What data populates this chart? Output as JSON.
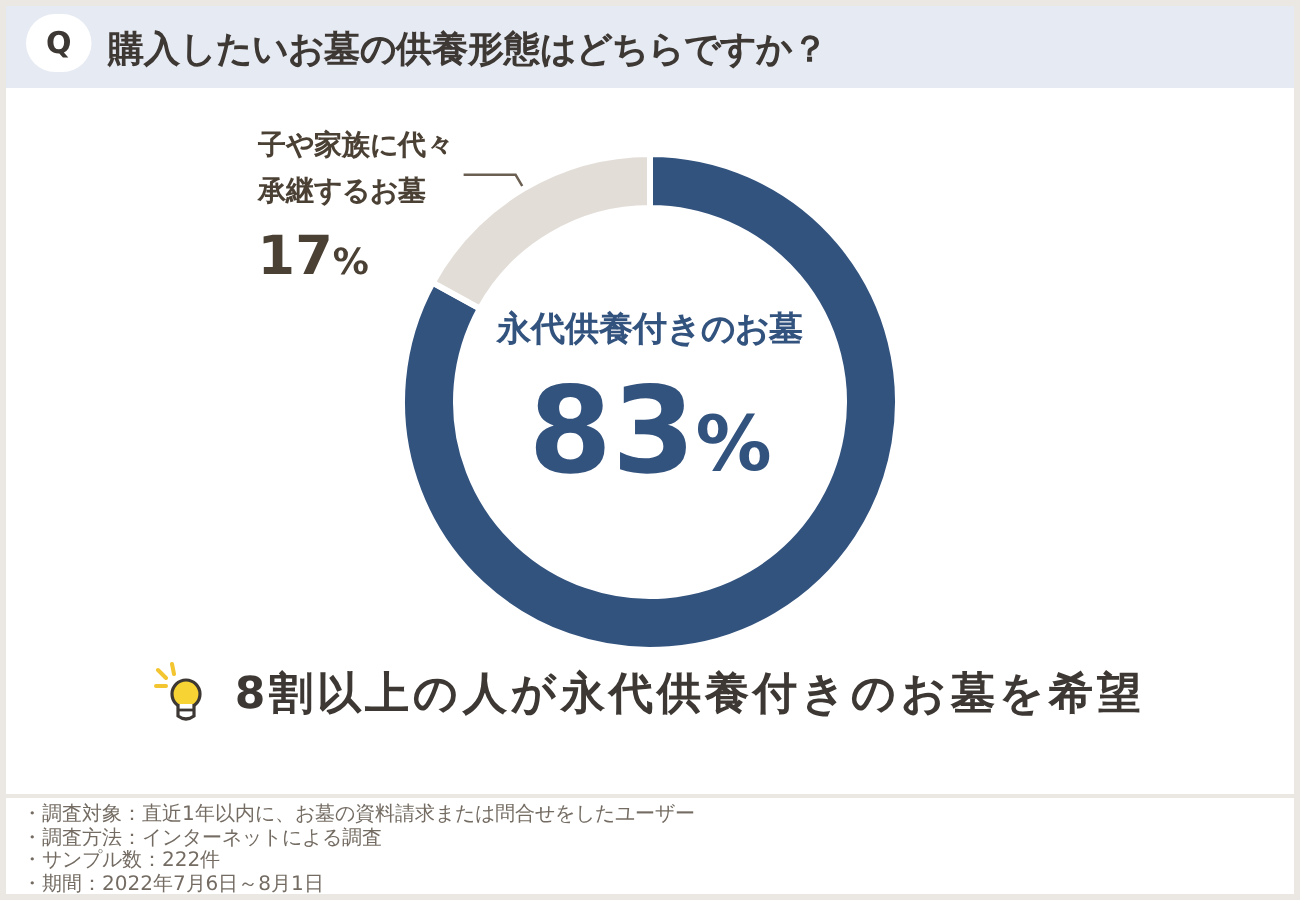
{
  "chart_data": {
    "type": "donut",
    "title": "購入したいお墓の供養形態はどちらですか？",
    "categories": [
      "永代供養付きのお墓",
      "子や家族に代々承継するお墓"
    ],
    "values": [
      83,
      17
    ],
    "colors": [
      "#33537f",
      "#e2ddd7"
    ],
    "value_labels": [
      "83%",
      "17%"
    ],
    "annotations": [
      "Q",
      "8割以上の人が永代供養付きのお墓を希望",
      "・調査対象：直近1年以内に、お墓の資料請求または問合せをしたユーザー",
      "・調査方法：インターネットによる調査",
      "・サンプル数：222件",
      "・期間：2022年7月6日～8月1日"
    ]
  }
}
